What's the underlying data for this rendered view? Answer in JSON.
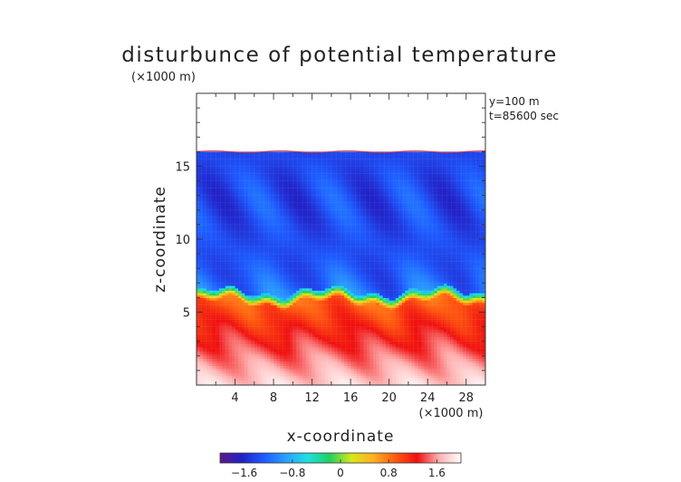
{
  "chart_data": {
    "type": "heatmap",
    "title": "disturbunce of potential temperature",
    "scale_note": "(×1000 m)",
    "xlabel": "x-coordinate",
    "ylabel": "z-coordinate",
    "x_scale_label": "(×1000 m)",
    "annotations": [
      "y=100 m",
      "t=85600 sec"
    ],
    "xlim": [
      0,
      30
    ],
    "ylim": [
      0,
      20
    ],
    "x_ticks": [
      4,
      8,
      12,
      16,
      20,
      24,
      28
    ],
    "y_ticks": [
      5,
      10,
      15
    ],
    "colorbar": {
      "range": [
        -2.0,
        2.0
      ],
      "ticks": [
        -1.6,
        -0.8,
        0,
        0.8,
        1.6
      ],
      "tick_labels": [
        "−1.6",
        "−0.8",
        "0",
        "0.8",
        "1.6"
      ],
      "colors": [
        "#5a1a8a",
        "#2222c8",
        "#1e5aff",
        "#2aa0ff",
        "#20e0e0",
        "#20d060",
        "#d8e81a",
        "#ffb020",
        "#ff5a10",
        "#f01010",
        "#ffb0b0",
        "#ffffff"
      ]
    },
    "fields": {
      "top_boundary_z": 16.0,
      "interface_z_min": 5.5,
      "interface_z_max": 6.6,
      "upper_layer_value": -1.4,
      "lower_layer_value_near_interface": 0.9,
      "lower_layer_value_near_ground": 1.8
    }
  }
}
